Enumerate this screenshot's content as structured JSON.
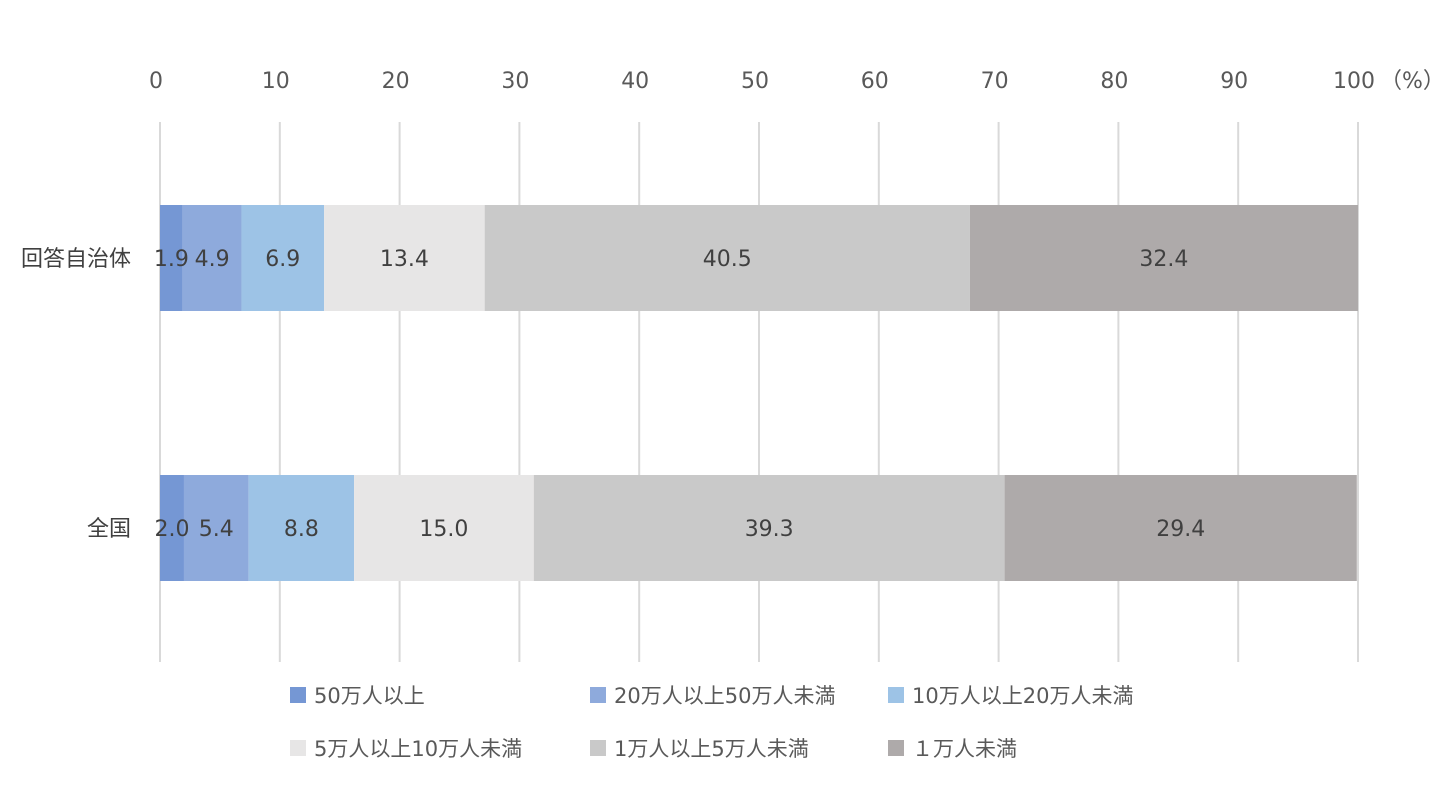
{
  "chart_data": {
    "type": "bar",
    "orientation": "horizontal",
    "stacked": true,
    "categories": [
      "回答自治体",
      "全国"
    ],
    "series": [
      {
        "name": "50万人以上",
        "values": [
          1.9,
          2.0
        ],
        "color": "#7597d4"
      },
      {
        "name": "20万人以上50万人未満",
        "values": [
          4.9,
          5.4
        ],
        "color": "#8eaadc"
      },
      {
        "name": "10万人以上20万人未満",
        "values": [
          6.9,
          8.8
        ],
        "color": "#9dc3e6"
      },
      {
        "name": "5万人以上10万人未満",
        "values": [
          13.4,
          15.0
        ],
        "color": "#e7e6e6"
      },
      {
        "name": "1万人以上5万人未満",
        "values": [
          40.5,
          39.3
        ],
        "color": "#c9c9c9"
      },
      {
        "name": "１万人未満",
        "values": [
          32.4,
          29.4
        ],
        "color": "#aeaaaa"
      }
    ],
    "x_ticks": [
      "0",
      "10",
      "20",
      "30",
      "40",
      "50",
      "60",
      "70",
      "80",
      "90",
      "100"
    ],
    "x_unit": "（%）",
    "xlim": [
      0,
      100
    ],
    "axis_position": "top",
    "grid": true,
    "legend_position": "bottom"
  }
}
